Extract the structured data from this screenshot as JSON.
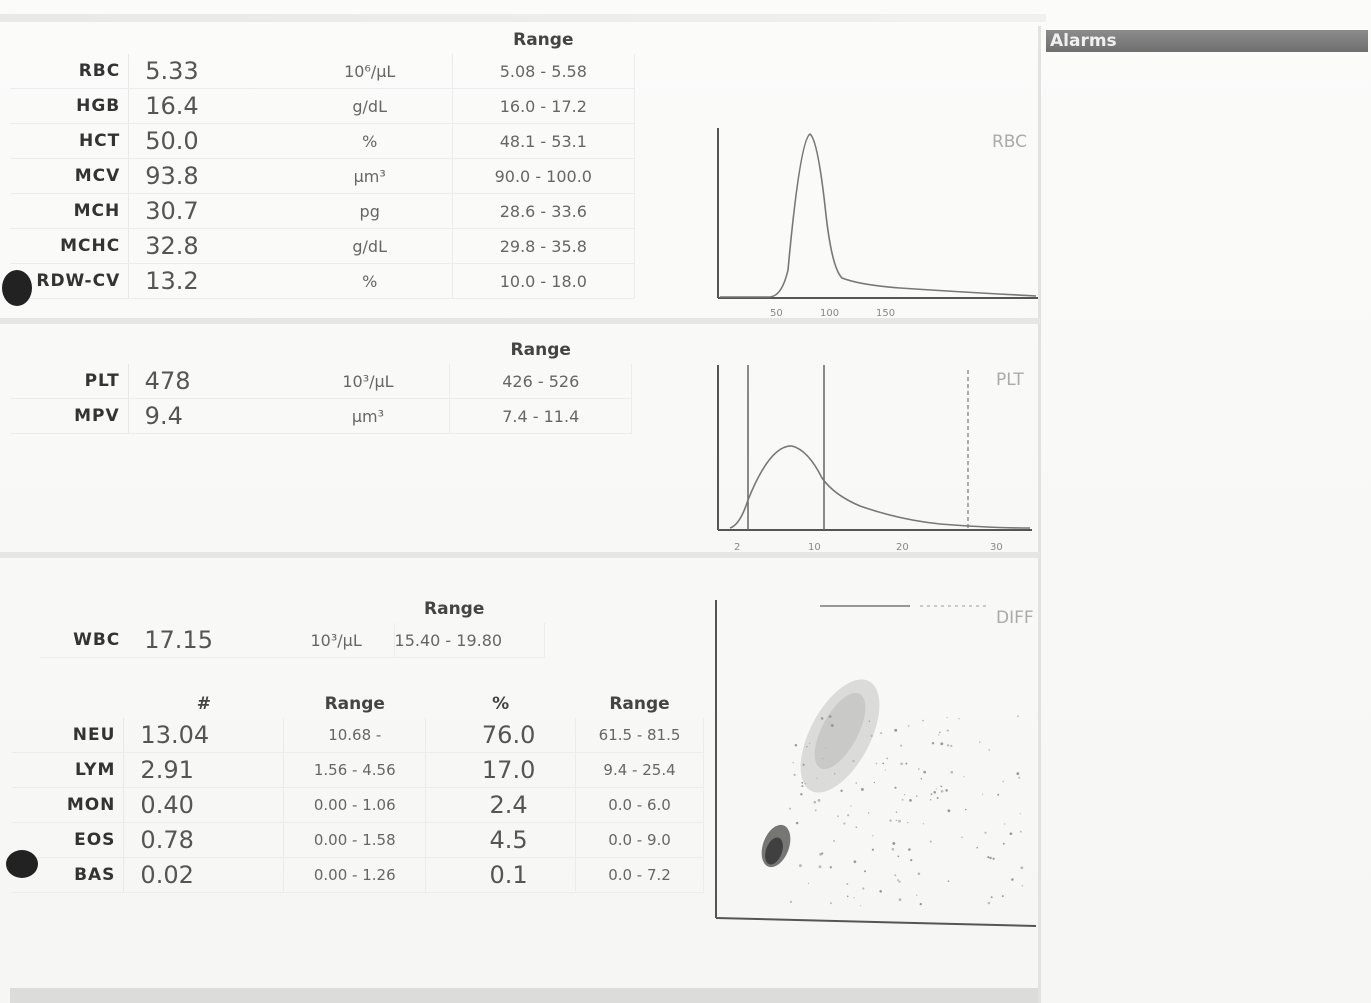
{
  "alarms_title": "Alarms",
  "range_header": "Range",
  "rbc_params": [
    {
      "name": "RBC",
      "value": "5.33",
      "unit": "10⁶/µL",
      "range": "5.08 - 5.58"
    },
    {
      "name": "HGB",
      "value": "16.4",
      "unit": "g/dL",
      "range": "16.0 - 17.2"
    },
    {
      "name": "HCT",
      "value": "50.0",
      "unit": "%",
      "range": "48.1 - 53.1"
    },
    {
      "name": "MCV",
      "value": "93.8",
      "unit": "µm³",
      "range": "90.0 - 100.0"
    },
    {
      "name": "MCH",
      "value": "30.7",
      "unit": "pg",
      "range": "28.6 - 33.6"
    },
    {
      "name": "MCHC",
      "value": "32.8",
      "unit": "g/dL",
      "range": "29.8 - 35.8"
    },
    {
      "name": "RDW-CV",
      "value": "13.2",
      "unit": "%",
      "range": "10.0 - 18.0"
    }
  ],
  "plt_params": [
    {
      "name": "PLT",
      "value": "478",
      "unit": "10³/µL",
      "range": "426 - 526"
    },
    {
      "name": "MPV",
      "value": "9.4",
      "unit": "µm³",
      "range": "7.4 - 11.4"
    }
  ],
  "wbc": {
    "name": "WBC",
    "value": "17.15",
    "unit": "10³/µL",
    "range": "15.40 - 19.80"
  },
  "diff_headers": {
    "abs": "#",
    "abs_range": "Range",
    "pct": "%",
    "pct_range": "Range"
  },
  "diff_params": [
    {
      "name": "NEU",
      "abs": "13.04",
      "abs_range": "10.68 -",
      "pct": "76.0",
      "pct_range": "61.5 - 81.5"
    },
    {
      "name": "LYM",
      "abs": "2.91",
      "abs_range": "1.56 - 4.56",
      "pct": "17.0",
      "pct_range": "9.4 - 25.4"
    },
    {
      "name": "MON",
      "abs": "0.40",
      "abs_range": "0.00 - 1.06",
      "pct": "2.4",
      "pct_range": "0.0 - 6.0"
    },
    {
      "name": "EOS",
      "abs": "0.78",
      "abs_range": "0.00 - 1.58",
      "pct": "4.5",
      "pct_range": "0.0 - 9.0"
    },
    {
      "name": "BAS",
      "abs": "0.02",
      "abs_range": "0.00 - 1.26",
      "pct": "0.1",
      "pct_range": "0.0 - 7.2"
    }
  ],
  "graphs": {
    "rbc": {
      "title": "RBC",
      "ticks": [
        "50",
        "100",
        "150"
      ]
    },
    "plt": {
      "title": "PLT",
      "ticks": [
        "2",
        "10",
        "20",
        "30"
      ]
    },
    "diff": {
      "title": "DIFF"
    }
  }
}
